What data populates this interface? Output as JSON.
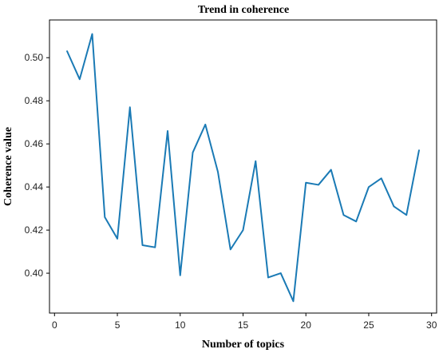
{
  "chart_data": {
    "type": "line",
    "title": "Trend in coherence",
    "xlabel": "Number of topics",
    "ylabel": "Coherence value",
    "xlim": [
      -0.4,
      30.4
    ],
    "ylim": [
      0.3815,
      0.5175
    ],
    "xticks": [
      0,
      5,
      10,
      15,
      20,
      25,
      30
    ],
    "xtick_labels": [
      "0",
      "5",
      "10",
      "15",
      "20",
      "25",
      "30"
    ],
    "yticks": [
      0.4,
      0.42,
      0.44,
      0.46,
      0.48,
      0.5
    ],
    "ytick_labels": [
      "0.40",
      "0.42",
      "0.44",
      "0.46",
      "0.48",
      "0.50"
    ],
    "grid": false,
    "legend": "none",
    "line_color": "#1a7ab5",
    "series": [
      {
        "x": [
          1,
          2,
          3,
          4,
          5,
          6,
          7,
          8,
          9,
          10,
          11,
          12,
          13,
          14,
          15,
          16,
          17,
          18,
          19,
          20,
          21,
          22,
          23,
          24,
          25,
          26,
          27,
          28,
          29
        ],
        "values": [
          0.503,
          0.49,
          0.511,
          0.426,
          0.416,
          0.477,
          0.413,
          0.412,
          0.466,
          0.399,
          0.456,
          0.469,
          0.447,
          0.411,
          0.42,
          0.452,
          0.398,
          0.4,
          0.387,
          0.442,
          0.441,
          0.448,
          0.427,
          0.424,
          0.44,
          0.444,
          0.431,
          0.427,
          0.457
        ]
      }
    ]
  }
}
